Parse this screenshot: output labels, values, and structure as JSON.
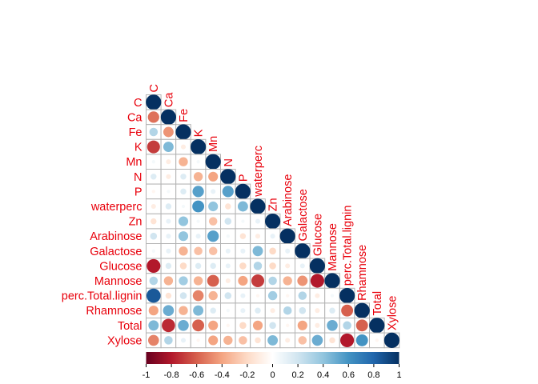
{
  "chart_data": {
    "type": "heatmap",
    "variables": [
      "C",
      "Ca",
      "Fe",
      "K",
      "Mn",
      "N",
      "P",
      "waterperc",
      "Zn",
      "Arabinose",
      "Galactose",
      "Glucose",
      "Mannose",
      "perc.Total.lignin",
      "Rhamnose",
      "Total",
      "Xylose"
    ],
    "triangle": "lower",
    "correlations": [
      [
        1
      ],
      [
        -0.55,
        1
      ],
      [
        0.3,
        -0.45,
        1
      ],
      [
        -0.7,
        0.45,
        -0.1,
        1
      ],
      [
        0.05,
        -0.1,
        -0.35,
        0.05,
        1
      ],
      [
        0.15,
        -0.1,
        0.15,
        -0.35,
        -0.4,
        1
      ],
      [
        -0.05,
        0.05,
        0.15,
        0.55,
        0.1,
        0.55,
        1
      ],
      [
        -0.1,
        0.15,
        0.05,
        0.6,
        0.4,
        -0.15,
        0.45,
        1
      ],
      [
        -0.15,
        0.1,
        0.4,
        0.05,
        -0.3,
        0.2,
        0.05,
        0.1,
        1
      ],
      [
        0.2,
        0.1,
        0.4,
        0.1,
        0.55,
        0.05,
        -0.15,
        -0.1,
        0.1,
        1
      ],
      [
        0.05,
        0.1,
        -0.35,
        -0.3,
        -0.3,
        0.1,
        0.1,
        0.45,
        -0.2,
        0.1,
        1
      ],
      [
        -0.8,
        0.15,
        -0.2,
        0.15,
        0.15,
        0.1,
        -0.2,
        0.3,
        -0.2,
        -0.1,
        0.1,
        1
      ],
      [
        0.3,
        -0.35,
        0.35,
        -0.35,
        -0.6,
        -0.1,
        -0.4,
        -0.7,
        0.3,
        -0.35,
        -0.45,
        -0.8,
        1
      ],
      [
        0.85,
        -0.15,
        0.2,
        -0.5,
        -0.35,
        0.2,
        0.1,
        -0.05,
        0.35,
        -0.05,
        0.3,
        -0.1,
        0.05,
        1
      ],
      [
        -0.4,
        0.5,
        -0.35,
        0.45,
        0.15,
        0.05,
        0.1,
        0.15,
        -0.1,
        0.3,
        0.2,
        -0.1,
        0.15,
        -0.6,
        1
      ],
      [
        0.45,
        -0.75,
        0.5,
        -0.6,
        -0.4,
        -0.05,
        -0.2,
        -0.4,
        0.2,
        -0.05,
        -0.4,
        -0.1,
        0.5,
        0.3,
        -0.6,
        1
      ],
      [
        -0.5,
        0.3,
        0.1,
        -0.05,
        -0.4,
        -0.35,
        -0.3,
        -0.15,
        0.45,
        -0.1,
        -0.3,
        0.5,
        -0.15,
        -0.8,
        0.6,
        -0.05,
        1
      ]
    ],
    "method": "circle",
    "colorbar": {
      "range": [
        -1,
        1
      ],
      "ticks": [
        "-1",
        "-0.8",
        "-0.6",
        "-0.4",
        "-0.2",
        "0",
        "0.2",
        "0.4",
        "0.6",
        "0.8",
        "1"
      ],
      "colors": [
        "#67001F",
        "#B2182B",
        "#D6604D",
        "#F4A582",
        "#FDDBC7",
        "#FFFFFF",
        "#D1E5F0",
        "#92C5DE",
        "#4393C3",
        "#2166AC",
        "#053061"
      ],
      "placement": "bottom"
    },
    "label_color": "#e8000b",
    "grid": true
  }
}
